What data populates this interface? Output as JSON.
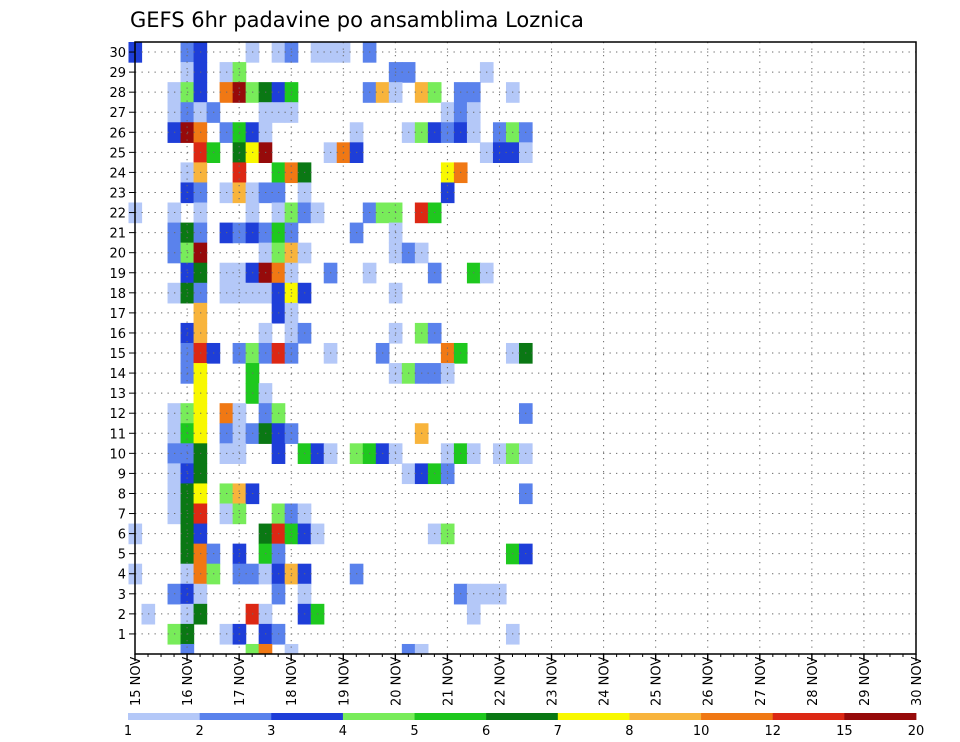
{
  "chart_data": {
    "type": "heatmap",
    "title": "GEFS 6hr padavine po ansamblima Loznica",
    "x_tick_labels": [
      "15 NOV",
      "16 NOV",
      "17 NOV",
      "18 NOV",
      "19 NOV",
      "20 NOV",
      "21 NOV",
      "22 NOV",
      "23 NOV",
      "24 NOV",
      "25 NOV",
      "26 NOV",
      "27 NOV",
      "28 NOV",
      "29 NOV",
      "30 NOV"
    ],
    "y_tick_labels": [
      "1",
      "2",
      "3",
      "4",
      "5",
      "6",
      "7",
      "8",
      "9",
      "10",
      "11",
      "12",
      "13",
      "14",
      "15",
      "16",
      "17",
      "18",
      "19",
      "20",
      "21",
      "22",
      "23",
      "24",
      "25",
      "26",
      "27",
      "28",
      "29",
      "30"
    ],
    "xlim": [
      0,
      60
    ],
    "ylim": [
      0,
      30
    ],
    "x_step_hours": 6,
    "grid": true,
    "legend": {
      "placement": "bottom",
      "labels": [
        "1",
        "2",
        "3",
        "4",
        "5",
        "6",
        "7",
        "8",
        "10",
        "12",
        "15",
        "20"
      ],
      "colors": [
        "#b4c8f8",
        "#5a82ec",
        "#1e3ed8",
        "#78ec5a",
        "#1ec81e",
        "#0a7814",
        "#f8f800",
        "#f8b43c",
        "#f07814",
        "#dc2814",
        "#960a0a"
      ]
    },
    "level_colors": {
      "1": "#b4c8f8",
      "2": "#5a82ec",
      "3": "#1e3ed8",
      "4": "#78ec5a",
      "5": "#1ec81e",
      "6": "#0a7814",
      "7": "#f8f800",
      "8": "#f8b43c",
      "9": "#f07814",
      "10": "#dc2814",
      "11": "#960a0a"
    },
    "cells": [
      [
        30,
        0,
        3
      ],
      [
        30,
        4,
        2
      ],
      [
        30,
        5,
        3
      ],
      [
        30,
        9,
        1
      ],
      [
        30,
        11,
        1
      ],
      [
        30,
        12,
        2
      ],
      [
        30,
        14,
        1
      ],
      [
        30,
        15,
        1
      ],
      [
        30,
        16,
        1
      ],
      [
        30,
        18,
        2
      ],
      [
        29,
        4,
        1
      ],
      [
        29,
        5,
        3
      ],
      [
        29,
        7,
        1
      ],
      [
        29,
        8,
        4
      ],
      [
        29,
        20,
        2
      ],
      [
        29,
        21,
        2
      ],
      [
        29,
        27,
        1
      ],
      [
        28,
        3,
        1
      ],
      [
        28,
        4,
        4
      ],
      [
        28,
        5,
        3
      ],
      [
        28,
        7,
        9
      ],
      [
        28,
        8,
        11
      ],
      [
        28,
        9,
        4
      ],
      [
        28,
        10,
        6
      ],
      [
        28,
        11,
        3
      ],
      [
        28,
        12,
        5
      ],
      [
        28,
        18,
        2
      ],
      [
        28,
        19,
        8
      ],
      [
        28,
        20,
        1
      ],
      [
        28,
        22,
        8
      ],
      [
        28,
        23,
        4
      ],
      [
        28,
        25,
        2
      ],
      [
        28,
        26,
        2
      ],
      [
        28,
        29,
        1
      ],
      [
        27,
        3,
        1
      ],
      [
        27,
        4,
        2
      ],
      [
        27,
        5,
        1
      ],
      [
        27,
        6,
        2
      ],
      [
        27,
        10,
        1
      ],
      [
        27,
        11,
        1
      ],
      [
        27,
        12,
        1
      ],
      [
        27,
        24,
        1
      ],
      [
        27,
        25,
        2
      ],
      [
        27,
        26,
        1
      ],
      [
        26,
        3,
        3
      ],
      [
        26,
        4,
        11
      ],
      [
        26,
        5,
        9
      ],
      [
        26,
        7,
        2
      ],
      [
        26,
        8,
        5
      ],
      [
        26,
        9,
        3
      ],
      [
        26,
        10,
        1
      ],
      [
        26,
        17,
        1
      ],
      [
        26,
        21,
        1
      ],
      [
        26,
        22,
        4
      ],
      [
        26,
        23,
        3
      ],
      [
        26,
        24,
        2
      ],
      [
        26,
        25,
        3
      ],
      [
        26,
        26,
        1
      ],
      [
        26,
        28,
        2
      ],
      [
        26,
        29,
        4
      ],
      [
        26,
        30,
        2
      ],
      [
        25,
        5,
        10
      ],
      [
        25,
        6,
        5
      ],
      [
        25,
        8,
        6
      ],
      [
        25,
        9,
        7
      ],
      [
        25,
        10,
        11
      ],
      [
        25,
        15,
        1
      ],
      [
        25,
        16,
        9
      ],
      [
        25,
        17,
        3
      ],
      [
        25,
        27,
        1
      ],
      [
        25,
        28,
        3
      ],
      [
        25,
        29,
        3
      ],
      [
        25,
        30,
        1
      ],
      [
        24,
        4,
        1
      ],
      [
        24,
        5,
        8
      ],
      [
        24,
        8,
        10
      ],
      [
        24,
        11,
        5
      ],
      [
        24,
        12,
        9
      ],
      [
        24,
        13,
        6
      ],
      [
        24,
        24,
        7
      ],
      [
        24,
        25,
        9
      ],
      [
        23,
        4,
        3
      ],
      [
        23,
        5,
        2
      ],
      [
        23,
        7,
        1
      ],
      [
        23,
        8,
        8
      ],
      [
        23,
        9,
        1
      ],
      [
        23,
        10,
        2
      ],
      [
        23,
        11,
        2
      ],
      [
        23,
        13,
        1
      ],
      [
        23,
        24,
        3
      ],
      [
        22,
        0,
        1
      ],
      [
        22,
        3,
        1
      ],
      [
        22,
        5,
        1
      ],
      [
        22,
        9,
        1
      ],
      [
        22,
        11,
        1
      ],
      [
        22,
        12,
        4
      ],
      [
        22,
        13,
        2
      ],
      [
        22,
        14,
        1
      ],
      [
        22,
        18,
        2
      ],
      [
        22,
        19,
        4
      ],
      [
        22,
        20,
        4
      ],
      [
        22,
        22,
        10
      ],
      [
        22,
        23,
        5
      ],
      [
        21,
        3,
        2
      ],
      [
        21,
        4,
        6
      ],
      [
        21,
        5,
        2
      ],
      [
        21,
        7,
        3
      ],
      [
        21,
        8,
        2
      ],
      [
        21,
        9,
        3
      ],
      [
        21,
        10,
        2
      ],
      [
        21,
        11,
        5
      ],
      [
        21,
        12,
        2
      ],
      [
        21,
        17,
        2
      ],
      [
        21,
        20,
        1
      ],
      [
        20,
        3,
        2
      ],
      [
        20,
        4,
        4
      ],
      [
        20,
        5,
        11
      ],
      [
        20,
        10,
        1
      ],
      [
        20,
        11,
        4
      ],
      [
        20,
        12,
        8
      ],
      [
        20,
        13,
        1
      ],
      [
        20,
        20,
        1
      ],
      [
        20,
        21,
        2
      ],
      [
        20,
        22,
        1
      ],
      [
        19,
        4,
        3
      ],
      [
        19,
        5,
        6
      ],
      [
        19,
        7,
        1
      ],
      [
        19,
        8,
        1
      ],
      [
        19,
        9,
        3
      ],
      [
        19,
        10,
        11
      ],
      [
        19,
        11,
        9
      ],
      [
        19,
        12,
        1
      ],
      [
        19,
        15,
        2
      ],
      [
        19,
        18,
        1
      ],
      [
        19,
        23,
        2
      ],
      [
        19,
        26,
        5
      ],
      [
        19,
        27,
        1
      ],
      [
        18,
        3,
        1
      ],
      [
        18,
        4,
        6
      ],
      [
        18,
        5,
        2
      ],
      [
        18,
        7,
        1
      ],
      [
        18,
        8,
        1
      ],
      [
        18,
        9,
        1
      ],
      [
        18,
        10,
        1
      ],
      [
        18,
        11,
        3
      ],
      [
        18,
        12,
        7
      ],
      [
        18,
        13,
        3
      ],
      [
        18,
        20,
        1
      ],
      [
        17,
        5,
        8
      ],
      [
        17,
        11,
        3
      ],
      [
        17,
        12,
        1
      ],
      [
        16,
        4,
        3
      ],
      [
        16,
        5,
        8
      ],
      [
        16,
        10,
        1
      ],
      [
        16,
        12,
        1
      ],
      [
        16,
        13,
        2
      ],
      [
        16,
        20,
        1
      ],
      [
        16,
        22,
        4
      ],
      [
        16,
        23,
        2
      ],
      [
        15,
        4,
        2
      ],
      [
        15,
        5,
        10
      ],
      [
        15,
        6,
        3
      ],
      [
        15,
        8,
        2
      ],
      [
        15,
        9,
        4
      ],
      [
        15,
        10,
        2
      ],
      [
        15,
        11,
        10
      ],
      [
        15,
        12,
        2
      ],
      [
        15,
        15,
        1
      ],
      [
        15,
        19,
        2
      ],
      [
        15,
        24,
        9
      ],
      [
        15,
        25,
        5
      ],
      [
        15,
        29,
        1
      ],
      [
        15,
        30,
        6
      ],
      [
        14,
        4,
        2
      ],
      [
        14,
        5,
        7
      ],
      [
        14,
        9,
        5
      ],
      [
        14,
        20,
        1
      ],
      [
        14,
        21,
        4
      ],
      [
        14,
        22,
        2
      ],
      [
        14,
        23,
        2
      ],
      [
        14,
        24,
        1
      ],
      [
        13,
        5,
        7
      ],
      [
        13,
        9,
        5
      ],
      [
        13,
        10,
        1
      ],
      [
        12,
        3,
        1
      ],
      [
        12,
        4,
        4
      ],
      [
        12,
        5,
        7
      ],
      [
        12,
        7,
        9
      ],
      [
        12,
        8,
        1
      ],
      [
        12,
        10,
        2
      ],
      [
        12,
        11,
        4
      ],
      [
        12,
        30,
        2
      ],
      [
        11,
        3,
        1
      ],
      [
        11,
        4,
        5
      ],
      [
        11,
        5,
        7
      ],
      [
        11,
        7,
        2
      ],
      [
        11,
        8,
        1
      ],
      [
        11,
        9,
        2
      ],
      [
        11,
        10,
        6
      ],
      [
        11,
        11,
        3
      ],
      [
        11,
        12,
        2
      ],
      [
        11,
        22,
        8
      ],
      [
        10,
        3,
        2
      ],
      [
        10,
        4,
        2
      ],
      [
        10,
        5,
        6
      ],
      [
        10,
        7,
        1
      ],
      [
        10,
        8,
        1
      ],
      [
        10,
        11,
        3
      ],
      [
        10,
        13,
        5
      ],
      [
        10,
        14,
        3
      ],
      [
        10,
        15,
        1
      ],
      [
        10,
        17,
        4
      ],
      [
        10,
        18,
        5
      ],
      [
        10,
        19,
        3
      ],
      [
        10,
        20,
        1
      ],
      [
        10,
        24,
        1
      ],
      [
        10,
        25,
        5
      ],
      [
        10,
        26,
        1
      ],
      [
        10,
        28,
        1
      ],
      [
        10,
        29,
        4
      ],
      [
        10,
        30,
        1
      ],
      [
        9,
        3,
        1
      ],
      [
        9,
        4,
        3
      ],
      [
        9,
        5,
        6
      ],
      [
        9,
        21,
        1
      ],
      [
        9,
        22,
        3
      ],
      [
        9,
        23,
        5
      ],
      [
        9,
        24,
        2
      ],
      [
        8,
        3,
        1
      ],
      [
        8,
        4,
        6
      ],
      [
        8,
        5,
        7
      ],
      [
        8,
        7,
        4
      ],
      [
        8,
        8,
        8
      ],
      [
        8,
        9,
        3
      ],
      [
        8,
        30,
        2
      ],
      [
        7,
        3,
        1
      ],
      [
        7,
        4,
        6
      ],
      [
        7,
        5,
        10
      ],
      [
        7,
        7,
        1
      ],
      [
        7,
        8,
        4
      ],
      [
        7,
        11,
        4
      ],
      [
        7,
        12,
        2
      ],
      [
        7,
        13,
        1
      ],
      [
        6,
        0,
        1
      ],
      [
        6,
        4,
        6
      ],
      [
        6,
        5,
        3
      ],
      [
        6,
        10,
        6
      ],
      [
        6,
        11,
        10
      ],
      [
        6,
        12,
        5
      ],
      [
        6,
        13,
        3
      ],
      [
        6,
        14,
        1
      ],
      [
        6,
        23,
        1
      ],
      [
        6,
        24,
        4
      ],
      [
        5,
        4,
        6
      ],
      [
        5,
        5,
        9
      ],
      [
        5,
        6,
        2
      ],
      [
        5,
        8,
        3
      ],
      [
        5,
        10,
        5
      ],
      [
        5,
        11,
        2
      ],
      [
        5,
        29,
        5
      ],
      [
        5,
        30,
        3
      ],
      [
        4,
        0,
        1
      ],
      [
        4,
        4,
        1
      ],
      [
        4,
        5,
        9
      ],
      [
        4,
        6,
        4
      ],
      [
        4,
        8,
        2
      ],
      [
        4,
        9,
        2
      ],
      [
        4,
        10,
        1
      ],
      [
        4,
        11,
        3
      ],
      [
        4,
        12,
        8
      ],
      [
        4,
        13,
        3
      ],
      [
        4,
        17,
        2
      ],
      [
        3,
        3,
        2
      ],
      [
        3,
        4,
        3
      ],
      [
        3,
        5,
        1
      ],
      [
        3,
        11,
        2
      ],
      [
        3,
        13,
        1
      ],
      [
        3,
        25,
        2
      ],
      [
        3,
        26,
        1
      ],
      [
        3,
        27,
        1
      ],
      [
        3,
        28,
        1
      ],
      [
        2,
        1,
        1
      ],
      [
        2,
        4,
        1
      ],
      [
        2,
        5,
        6
      ],
      [
        2,
        9,
        10
      ],
      [
        2,
        10,
        1
      ],
      [
        2,
        13,
        3
      ],
      [
        2,
        14,
        5
      ],
      [
        2,
        26,
        1
      ],
      [
        1,
        3,
        4
      ],
      [
        1,
        4,
        6
      ],
      [
        1,
        7,
        1
      ],
      [
        1,
        8,
        3
      ],
      [
        1,
        10,
        3
      ],
      [
        1,
        11,
        2
      ],
      [
        1,
        29,
        1
      ]
    ],
    "row0_cells": [
      [
        4,
        2
      ],
      [
        9,
        4
      ],
      [
        10,
        9
      ],
      [
        12,
        1
      ],
      [
        21,
        2
      ],
      [
        22,
        1
      ]
    ]
  }
}
